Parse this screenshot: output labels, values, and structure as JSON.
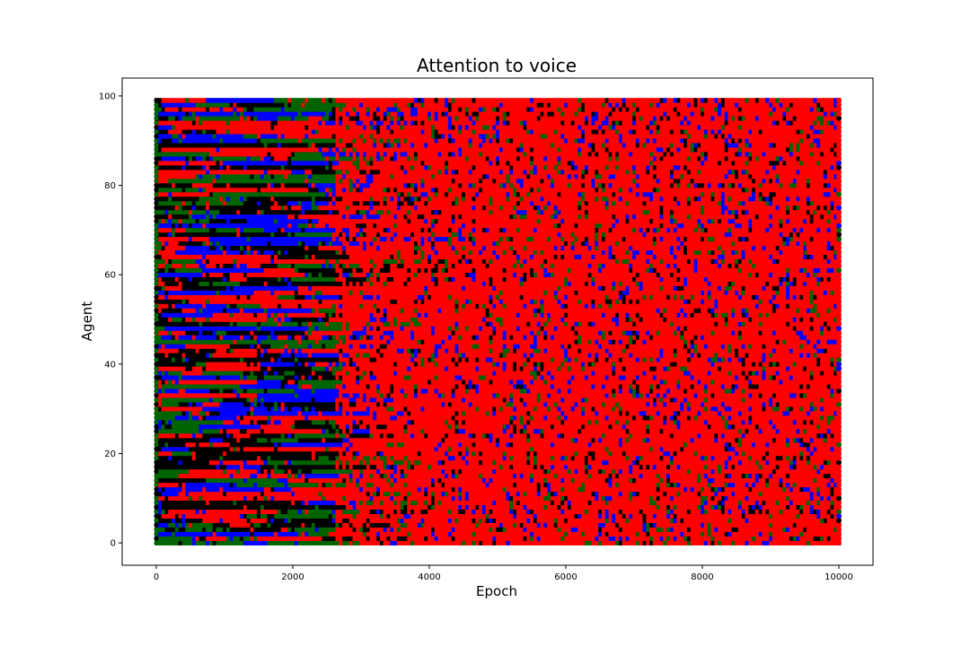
{
  "chart_data": {
    "type": "scatter",
    "title": "Attention to voice",
    "xlabel": "Epoch",
    "ylabel": "Agent",
    "xlim": [
      -500,
      10500
    ],
    "ylim": [
      -5,
      104
    ],
    "x_ticks": [
      0,
      2000,
      4000,
      6000,
      8000,
      10000
    ],
    "y_ticks": [
      0,
      20,
      40,
      60,
      80,
      100
    ],
    "grid": false,
    "legend": "none",
    "agents": [
      0,
      99
    ],
    "epochs": [
      0,
      10000
    ],
    "marker_colors": [
      "#ff0000",
      "#0000ff",
      "#006400",
      "#000000"
    ],
    "phases": [
      {
        "epoch_range": [
          0,
          2600
        ],
        "pattern": "mixed per-agent bands of red, blue, green and black"
      },
      {
        "epoch_range": [
          2600,
          4000
        ],
        "pattern": "transition, mostly red with residual streaks"
      },
      {
        "epoch_range": [
          4000,
          10000
        ],
        "pattern": "predominantly red with scattered blue, green and black"
      }
    ]
  }
}
